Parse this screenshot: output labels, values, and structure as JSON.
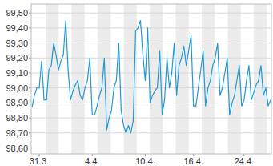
{
  "chart_data": {
    "type": "line",
    "color": "#1f9ad6",
    "grid": true,
    "ylim": [
      98.56,
      99.56
    ],
    "yticks": [
      {
        "value": 98.6,
        "label": "98,60"
      },
      {
        "value": 98.7,
        "label": "98,70"
      },
      {
        "value": 98.8,
        "label": "98,80"
      },
      {
        "value": 98.9,
        "label": "98,90"
      },
      {
        "value": 99.0,
        "label": "99,00"
      },
      {
        "value": 99.1,
        "label": "99,10"
      },
      {
        "value": 99.2,
        "label": "99,20"
      },
      {
        "value": 99.3,
        "label": "99,30"
      },
      {
        "value": 99.4,
        "label": "99,40"
      },
      {
        "value": 99.5,
        "label": "99,50"
      }
    ],
    "categories": [
      null,
      null,
      null,
      "31.3.",
      null,
      null,
      null,
      null,
      null,
      null,
      null,
      null,
      null,
      null,
      null,
      null,
      null,
      null,
      null,
      null,
      null,
      null,
      null,
      null,
      null,
      "4.4.",
      null,
      null,
      null,
      null,
      null,
      null,
      null,
      null,
      null,
      null,
      null,
      null,
      null,
      null,
      null,
      null,
      null,
      null,
      null,
      null,
      null,
      "10.4.",
      null,
      null,
      null,
      null,
      null,
      null,
      null,
      null,
      null,
      null,
      null,
      null,
      null,
      null,
      null,
      null,
      null,
      null,
      null,
      "16.4.",
      null,
      null,
      null,
      null,
      null,
      null,
      null,
      null,
      null,
      null,
      null,
      null,
      null,
      null,
      null,
      null,
      null,
      null,
      null,
      null,
      "24.4.",
      null,
      null,
      null,
      null,
      null,
      null,
      null,
      null,
      null,
      null,
      null
    ],
    "values": [
      98.87,
      98.95,
      99.0,
      99.0,
      99.18,
      98.92,
      98.92,
      99.12,
      99.15,
      99.3,
      99.22,
      99.12,
      99.18,
      99.22,
      99.45,
      99.12,
      98.92,
      98.98,
      99.02,
      99.05,
      98.95,
      98.92,
      99.0,
      99.05,
      99.2,
      98.82,
      98.82,
      98.88,
      98.95,
      99.0,
      99.2,
      98.72,
      98.8,
      98.85,
      99.0,
      99.05,
      99.3,
      98.85,
      98.75,
      98.7,
      98.75,
      98.7,
      98.78,
      99.38,
      99.4,
      99.45,
      99.22,
      99.05,
      99.4,
      98.9,
      98.95,
      98.98,
      99.0,
      99.25,
      98.82,
      98.92,
      99.2,
      99.0,
      99.1,
      99.3,
      98.95,
      99.15,
      99.2,
      99.28,
      99.15,
      99.25,
      99.35,
      98.88,
      98.88,
      99.0,
      99.12,
      99.25,
      98.88,
      99.0,
      99.05,
      99.15,
      99.2,
      99.3,
      98.95,
      99.0,
      99.1,
      99.2,
      98.82,
      98.9,
      98.95,
      99.05,
      99.15,
      98.88,
      98.92,
      99.05,
      99.15,
      98.92,
      98.97,
      99.02,
      99.05,
      99.15,
      98.95,
      99.0,
      98.88,
      98.92
    ]
  }
}
